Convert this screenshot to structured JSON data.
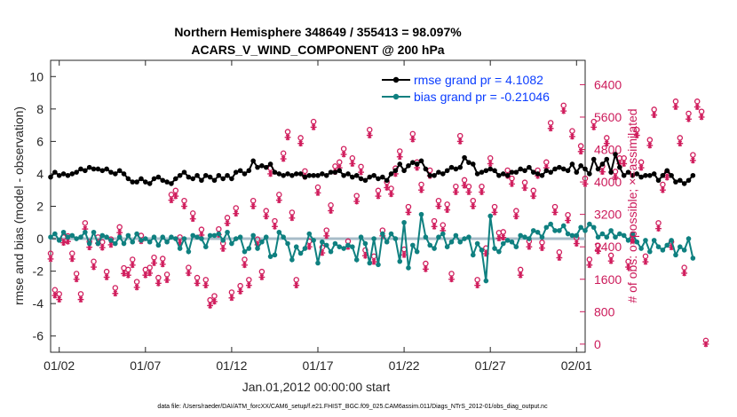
{
  "chart_data": {
    "type": "line",
    "title": [
      "Northern Hemisphere 348649 / 355413 = 98.097%",
      "ACARS_V_WIND_COMPONENT @ 200 hPa"
    ],
    "xlabel": "Jan.01,2012 00:00:00 start",
    "ylabel": "rmse and bias (model - observation)",
    "y2label": "# of obs: o=possible; ×=assimilated",
    "xlim": [
      0.5,
      31.5
    ],
    "ylim": [
      -7,
      11
    ],
    "y2lim": [
      -200,
      7000
    ],
    "xticks": [
      1,
      6,
      11,
      16,
      21,
      26,
      31
    ],
    "xticklabels": [
      "01/02",
      "01/07",
      "01/12",
      "01/17",
      "01/22",
      "01/27",
      "02/01"
    ],
    "yticks": [
      -6,
      -4,
      -2,
      0,
      2,
      4,
      6,
      8,
      10
    ],
    "y2ticks": [
      0,
      800,
      1600,
      2400,
      3200,
      4000,
      4800,
      5600,
      6400
    ],
    "zero_line": 0,
    "colors": {
      "rmse": "#000000",
      "bias": "#0f8080",
      "obs": "#d01c5c",
      "zero": "#a8bcc8",
      "legend_text": "#0a3cff"
    },
    "series": [
      {
        "name": "rmse grand pr = 4.1082",
        "color": "#000000",
        "x_start": 0.5,
        "x_step": 0.25,
        "values": [
          3.8,
          4.1,
          3.9,
          4.0,
          3.9,
          4.0,
          4.1,
          4.3,
          4.2,
          4.4,
          4.3,
          4.3,
          4.2,
          4.3,
          4.1,
          4.0,
          4.2,
          4.0,
          3.7,
          3.5,
          3.5,
          3.7,
          3.5,
          3.4,
          3.7,
          3.8,
          3.6,
          3.5,
          3.4,
          3.7,
          3.9,
          4.1,
          3.8,
          3.7,
          3.9,
          3.6,
          3.9,
          3.8,
          3.6,
          3.9,
          3.7,
          3.9,
          3.7,
          4.1,
          4.2,
          4.0,
          4.2,
          4.8,
          4.4,
          4.5,
          4.4,
          4.6,
          4.1,
          4.0,
          3.9,
          4.0,
          3.9,
          4.0,
          4.0,
          3.8,
          3.9,
          3.9,
          3.9,
          4.0,
          3.9,
          4.1,
          4.1,
          4.2,
          3.9,
          4.0,
          3.8,
          3.9,
          3.7,
          3.6,
          3.8,
          3.9,
          3.7,
          3.8,
          3.6,
          4.0,
          4.2,
          4.6,
          4.2,
          4.5,
          4.7,
          4.6,
          4.8,
          4.3,
          3.9,
          3.9,
          4.1,
          4.0,
          4.2,
          4.4,
          4.3,
          4.4,
          5.0,
          4.7,
          4.6,
          4.0,
          4.1,
          4.2,
          4.3,
          4.2,
          3.9,
          4.0,
          3.9,
          4.1,
          4.1,
          4.3,
          4.2,
          4.4,
          4.1,
          4.0,
          3.9,
          4.2,
          4.1,
          4.3,
          4.4,
          4.3,
          4.2,
          4.6,
          4.1,
          4.5,
          4.3,
          4.0,
          4.9,
          4.3,
          4.6,
          4.9,
          4.1,
          5.2,
          4.4,
          3.9,
          4.1,
          3.9,
          4.0,
          3.8,
          3.9,
          3.9,
          4.0,
          3.6,
          3.9,
          4.2,
          3.9,
          3.5,
          3.6,
          3.4,
          3.6,
          3.9
        ],
        "markers": "filled-circle"
      },
      {
        "name": "bias grand pr = -0.21046",
        "color": "#0f8080",
        "x_start": 0.5,
        "x_step": 0.25,
        "values": [
          0.1,
          0.3,
          -0.1,
          0.4,
          0.1,
          0.2,
          0.0,
          0.1,
          0.4,
          -0.3,
          0.4,
          -0.3,
          0.2,
          0.1,
          -0.1,
          -0.3,
          0.1,
          -0.3,
          0.2,
          -0.2,
          0.3,
          -0.1,
          0.0,
          -0.2,
          0.1,
          -0.4,
          0.1,
          -0.2,
          0.1,
          0.0,
          -0.6,
          0.0,
          -0.8,
          0.2,
          0.1,
          0.0,
          -0.5,
          0.2,
          0.2,
          0.3,
          -0.1,
          0.4,
          -0.3,
          0.0,
          0.1,
          -0.8,
          -0.6,
          0.2,
          -0.6,
          -0.2,
          0.1,
          -1.1,
          -1.0,
          0.4,
          0.1,
          -0.3,
          -1.3,
          -0.5,
          -0.9,
          -0.6,
          0.3,
          -0.1,
          -1.5,
          -0.2,
          -0.4,
          -0.8,
          -0.3,
          -0.5,
          -0.6,
          -0.4,
          -0.5,
          -1.3,
          0.1,
          -0.3,
          -1.5,
          0.0,
          -1.6,
          0.3,
          -0.2,
          0.3,
          0.0,
          -1.4,
          1.0,
          -1.8,
          -0.4,
          -0.8,
          1.5,
          0.1,
          -0.4,
          -0.6,
          0.1,
          0.3,
          -0.5,
          -0.2,
          0.2,
          -0.2,
          0.0,
          0.1,
          -1.0,
          -0.3,
          -0.7,
          -2.6,
          1.4,
          -0.6,
          -0.8,
          -0.3,
          -0.1,
          -0.2,
          -0.5,
          0.2,
          0.1,
          0.0,
          0.5,
          0.4,
          0.1,
          0.7,
          0.9,
          0.5,
          0.5,
          0.8,
          0.3,
          0.2,
          0.2,
          0.7,
          0.5,
          0.9,
          0.7,
          0.1,
          0.3,
          0.1,
          0.5,
          0.1,
          0.3,
          0.2,
          -0.1,
          0.3,
          -0.2,
          -0.6,
          -0.1,
          -0.8,
          -0.1,
          -0.5,
          -0.7,
          -0.4,
          -0.1,
          -1.0,
          -0.5,
          -0.7,
          0.0,
          -1.2
        ],
        "markers": "filled-circle"
      },
      {
        "name": "obs possible",
        "axis": "right",
        "color": "#d01c5c",
        "marker": "o",
        "x_start": 0.5,
        "x_step": 0.25,
        "values": [
          2150,
          1250,
          1150,
          2550,
          2580,
          2150,
          1650,
          1150,
          2900,
          2440,
          1950,
          2550,
          2430,
          1700,
          2500,
          1300,
          2800,
          1790,
          1750,
          2000,
          1450,
          2590,
          1750,
          1800,
          2050,
          1550,
          2020,
          1630,
          3600,
          3700,
          2550,
          3450,
          1800,
          3140,
          1550,
          2740,
          1500,
          1000,
          1100,
          2750,
          2400,
          3030,
          1190,
          3270,
          1350,
          2000,
          1500,
          3450,
          2500,
          1700,
          3200,
          4250,
          2950,
          3600,
          4620,
          5150,
          3160,
          1500,
          5000,
          4180,
          2450,
          5400,
          3780,
          2300,
          2720,
          3340,
          4300,
          4400,
          4730,
          2450,
          4500,
          3570,
          4290,
          2230,
          5200,
          2080,
          3700,
          2720,
          3910,
          3750,
          4250,
          4670,
          2250,
          3300,
          5100,
          4400,
          3850,
          1900,
          4200,
          2950,
          3450,
          2850,
          3360,
          1650,
          3800,
          5050,
          3960,
          3800,
          3450,
          1500,
          3800,
          2280,
          4500,
          3300,
          2660,
          2680,
          4200,
          4000,
          3200,
          1750,
          3900,
          2450,
          3700,
          4200,
          2420,
          4400,
          5370,
          3300,
          2180,
          5800,
          3100,
          5170,
          2530,
          4800,
          4000,
          2000,
          5400,
          2340,
          4300,
          5000,
          2100,
          4170,
          4500,
          4500,
          1950,
          2600,
          5200,
          4400,
          2080,
          4950,
          5700,
          2900,
          3850,
          4160,
          2440,
          5900,
          5000,
          1800,
          5600,
          4580,
          5900,
          5650,
          0
        ],
        "markers": "open-circle"
      },
      {
        "name": "obs assimilated",
        "axis": "right",
        "color": "#d01c5c",
        "marker": "*",
        "x_start": 0.5,
        "x_step": 0.25,
        "values": [
          2100,
          1200,
          1100,
          2500,
          2530,
          2100,
          1600,
          1100,
          2840,
          2390,
          1900,
          2490,
          2380,
          1650,
          2450,
          1250,
          2750,
          1740,
          1700,
          1950,
          1400,
          2540,
          1700,
          1750,
          2000,
          1500,
          1970,
          1580,
          3550,
          3650,
          2500,
          3400,
          1750,
          3090,
          1500,
          2690,
          1450,
          950,
          1050,
          2700,
          2350,
          2980,
          1140,
          3220,
          1300,
          1950,
          1450,
          3400,
          2450,
          1650,
          3150,
          4200,
          2900,
          3550,
          4570,
          5100,
          3110,
          1450,
          4950,
          4130,
          2400,
          5350,
          3730,
          2250,
          2670,
          3290,
          4250,
          4350,
          4680,
          2400,
          4450,
          3520,
          4240,
          2180,
          5150,
          2030,
          3650,
          2670,
          3860,
          3700,
          4200,
          4620,
          2200,
          3250,
          5050,
          4350,
          3800,
          1850,
          4150,
          2900,
          3400,
          2800,
          3310,
          1600,
          3750,
          5000,
          3910,
          3750,
          3400,
          1450,
          3750,
          2230,
          4450,
          3250,
          2610,
          2630,
          4150,
          3950,
          3150,
          1700,
          3850,
          2400,
          3650,
          4150,
          2370,
          4350,
          5320,
          3250,
          2130,
          5750,
          3050,
          5120,
          2480,
          4750,
          3950,
          1950,
          5350,
          2290,
          4250,
          4950,
          2050,
          4120,
          4450,
          4450,
          1900,
          2550,
          5150,
          4350,
          2030,
          4900,
          5650,
          2850,
          3800,
          4110,
          2390,
          5850,
          4950,
          1750,
          5550,
          4530,
          5850,
          5600,
          0
        ],
        "markers": "asterisk"
      }
    ],
    "legend_location": "top-right"
  },
  "footer": "data file: /Users/raeder/DAI/ATM_forcXX/CAM6_setup/f.e21.FHIST_BGC.f09_025.CAM6assim.011/Diags_NTrS_2012-01/obs_diag_output.nc"
}
